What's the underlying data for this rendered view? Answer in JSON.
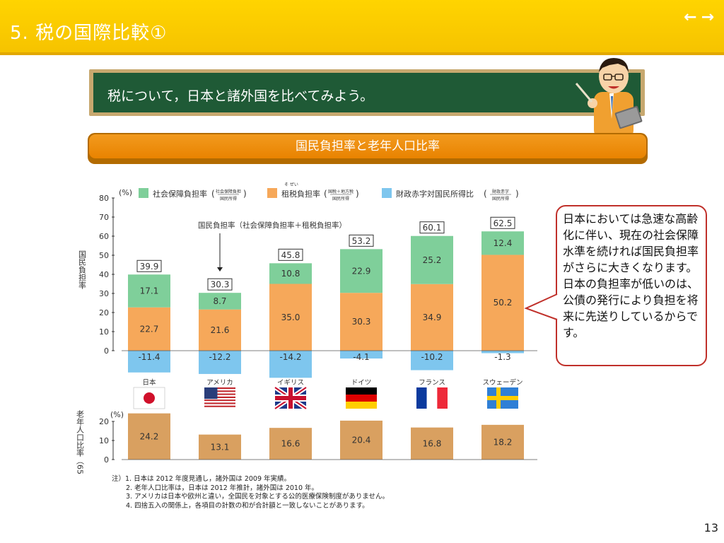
{
  "slide": {
    "title": "5. 税の国際比較①",
    "nav_prev": "←",
    "nav_next": "→",
    "page_number": "13"
  },
  "board": {
    "text": "税について，日本と諸外国を比べてみよう。"
  },
  "subtitle": "国民負担率と老年人口比率",
  "callout": {
    "text": "日本においては急速な高齢化に伴い、現在の社会保障水準を続ければ国民負担率がさらに大きくなります。日本の負担率が低いのは、公債の発行により負担を将来に先送りしているからです。"
  },
  "colors": {
    "header": "#ffd400",
    "social_security": "#7fcf9a",
    "tax": "#f6a85a",
    "deficit": "#7ec6ee",
    "elderly": "#d9a060",
    "callout_border": "#c0302a",
    "board": "#1f5a36"
  },
  "chart_data": [
    {
      "type": "bar",
      "stacked": true,
      "unit": "(%)",
      "ylabel": "国民負担率",
      "ylim": [
        -15,
        80
      ],
      "yticks": [
        0,
        10,
        20,
        30,
        40,
        50,
        60,
        70,
        80
      ],
      "categories": [
        "日本",
        "アメリカ",
        "イギリス",
        "ドイツ",
        "フランス",
        "スウェーデン"
      ],
      "legend": {
        "social_security": "社会保障負担率",
        "social_security_formula_top": "社会保障負担",
        "social_security_formula_bottom": "国民所得",
        "tax": "租税負担率",
        "tax_ruby": "そ ぜい",
        "tax_formula_top": "国税＋地方税",
        "tax_formula_bottom": "国民所得",
        "deficit": "財政赤字対国民所得比",
        "deficit_formula_top": "財政赤字",
        "deficit_formula_bottom": "国民所得"
      },
      "annotation": "国民負担率（社会保障負担率＋租税負担率）",
      "series": [
        {
          "name": "租税負担率",
          "values": [
            22.7,
            21.6,
            35.0,
            30.3,
            34.9,
            50.2
          ]
        },
        {
          "name": "社会保障負担率",
          "values": [
            17.1,
            8.7,
            10.8,
            22.9,
            25.2,
            12.4
          ]
        },
        {
          "name": "財政赤字対国民所得比",
          "values": [
            -11.4,
            -12.2,
            -14.2,
            -4.1,
            -10.2,
            -1.3
          ]
        }
      ],
      "totals": [
        39.9,
        30.3,
        45.8,
        53.2,
        60.1,
        62.5
      ]
    },
    {
      "type": "bar",
      "unit": "(%)",
      "ylabel": "老年人口比率（65歳以上）",
      "ylim": [
        0,
        20
      ],
      "yticks": [
        0,
        10,
        20
      ],
      "categories": [
        "日本",
        "アメリカ",
        "イギリス",
        "ドイツ",
        "フランス",
        "スウェーデン"
      ],
      "values": [
        24.2,
        13.1,
        16.6,
        20.4,
        16.8,
        18.2
      ]
    }
  ],
  "notes": [
    "注）1. 日本は 2012 年度見通し，諸外国は 2009 年実績。",
    "2. 老年人口比率は，日本は 2012 年推計，諸外国は 2010 年。",
    "3. アメリカは日本や欧州と違い，全国民を対象とする公的医療保険制度がありません。",
    "4. 四捨五入の関係上，各項目の計数の和が合計額と一致しないことがあります。"
  ]
}
